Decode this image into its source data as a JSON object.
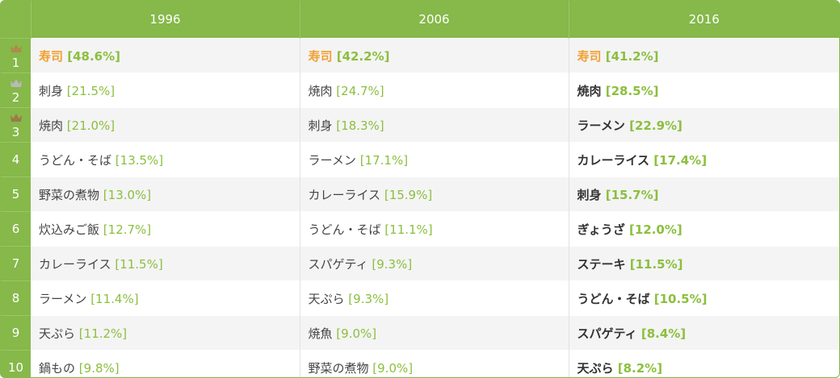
{
  "colors": {
    "header_green": "#86b84a",
    "percent_green": "#8bbf3f",
    "top_orange": "#f0a030",
    "crown_gold": "#b08a4a",
    "crown_silver": "#b9b9b9",
    "crown_bronze": "#9a7a4a"
  },
  "columns": [
    "1996",
    "2006",
    "2016"
  ],
  "rows": [
    {
      "rank": "1",
      "crown": "gold-crown-icon",
      "cells": [
        {
          "name": "寿司",
          "pct": "[48.6%]"
        },
        {
          "name": "寿司",
          "pct": "[42.2%]"
        },
        {
          "name": "寿司",
          "pct": "[41.2%]"
        }
      ]
    },
    {
      "rank": "2",
      "crown": "silver-crown-icon",
      "cells": [
        {
          "name": "刺身",
          "pct": "[21.5%]"
        },
        {
          "name": "焼肉",
          "pct": "[24.7%]"
        },
        {
          "name": "焼肉",
          "pct": "[28.5%]"
        }
      ]
    },
    {
      "rank": "3",
      "crown": "bronze-crown-icon",
      "cells": [
        {
          "name": "焼肉",
          "pct": "[21.0%]"
        },
        {
          "name": "刺身",
          "pct": "[18.3%]"
        },
        {
          "name": "ラーメン",
          "pct": "[22.9%]"
        }
      ]
    },
    {
      "rank": "4",
      "cells": [
        {
          "name": "うどん・そば",
          "pct": "[13.5%]"
        },
        {
          "name": "ラーメン",
          "pct": "[17.1%]"
        },
        {
          "name": "カレーライス",
          "pct": "[17.4%]"
        }
      ]
    },
    {
      "rank": "5",
      "cells": [
        {
          "name": "野菜の煮物",
          "pct": "[13.0%]"
        },
        {
          "name": "カレーライス",
          "pct": "[15.9%]"
        },
        {
          "name": "刺身",
          "pct": "[15.7%]"
        }
      ]
    },
    {
      "rank": "6",
      "cells": [
        {
          "name": "炊込みご飯",
          "pct": "[12.7%]"
        },
        {
          "name": "うどん・そば",
          "pct": "[11.1%]"
        },
        {
          "name": "ぎょうざ",
          "pct": "[12.0%]"
        }
      ]
    },
    {
      "rank": "7",
      "cells": [
        {
          "name": "カレーライス",
          "pct": "[11.5%]"
        },
        {
          "name": "スパゲティ",
          "pct": "[9.3%]"
        },
        {
          "name": "ステーキ",
          "pct": "[11.5%]"
        }
      ]
    },
    {
      "rank": "8",
      "cells": [
        {
          "name": "ラーメン",
          "pct": "[11.4%]"
        },
        {
          "name": "天ぷら",
          "pct": "[9.3%]"
        },
        {
          "name": "うどん・そば",
          "pct": "[10.5%]"
        }
      ]
    },
    {
      "rank": "9",
      "cells": [
        {
          "name": "天ぷら",
          "pct": "[11.2%]"
        },
        {
          "name": "焼魚",
          "pct": "[9.0%]"
        },
        {
          "name": "スパゲティ",
          "pct": "[8.4%]"
        }
      ]
    },
    {
      "rank": "10",
      "cells": [
        {
          "name": "鍋もの",
          "pct": "[9.8%]"
        },
        {
          "name": "野菜の煮物",
          "pct": "[9.0%]"
        },
        {
          "name": "天ぷら",
          "pct": "[8.2%]"
        }
      ]
    }
  ]
}
